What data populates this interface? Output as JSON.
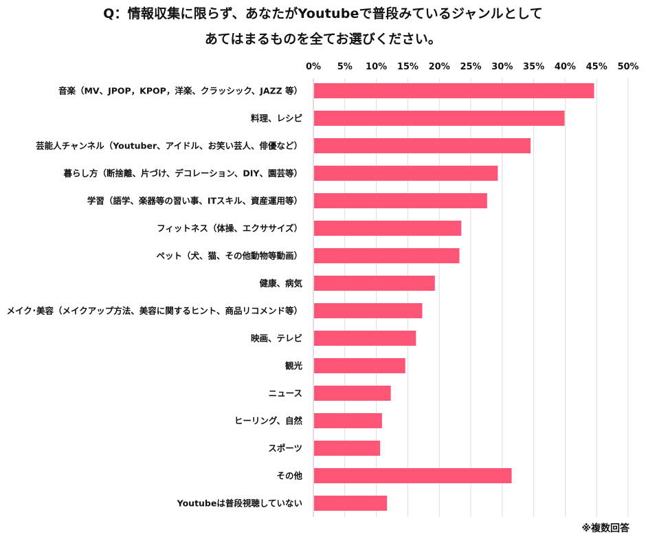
{
  "title_line1": "Q：情報収集に限らず、あなたがYoutubeで普段みているジャンルとして",
  "title_line2": "あてはまるものを全てお選びください。",
  "footnote": "※複数回答",
  "chart_data": {
    "type": "bar",
    "orientation": "horizontal",
    "title": "Q：情報収集に限らず、あなたがYoutubeで普段みているジャンルとしてあてはまるものを全てお選びください。",
    "xlim": [
      0,
      50
    ],
    "x_ticks": [
      "0%",
      "5%",
      "10%",
      "15%",
      "20%",
      "25%",
      "30%",
      "35%",
      "40%",
      "45%",
      "50%"
    ],
    "x_tick_values": [
      0,
      5,
      10,
      15,
      20,
      25,
      30,
      35,
      40,
      45,
      50
    ],
    "grid": "vertical",
    "bar_color": "#FF5577",
    "categories": [
      "音楽（MV、JPOP，KPOP，洋楽、クラッシック、JAZZ 等）",
      "料理、レシピ",
      "芸能人チャンネル（Youtuber、アイドル、お笑い芸人、俳優など）",
      "暮らし方（断捨離、片づけ、デコレーション、DIY、園芸等）",
      "学習（語学、楽器等の習い事、ITスキル、資産運用等）",
      "フィットネス（体操、エクササイズ）",
      "ペット（犬、猫、その他動物等動画）",
      "健康、病気",
      "メイク･美容（メイクアップ方法、美容に関するヒント、商品リコメンド等）",
      "映画、テレビ",
      "観光",
      "ニュース",
      "ヒーリング、自然",
      "スポーツ",
      "その他",
      "Youtubeは普段視聴していない"
    ],
    "values": [
      44.6,
      39.9,
      34.5,
      29.3,
      27.6,
      23.5,
      23.2,
      19.3,
      17.3,
      16.3,
      14.6,
      12.3,
      10.9,
      10.6,
      31.5,
      11.7
    ]
  }
}
